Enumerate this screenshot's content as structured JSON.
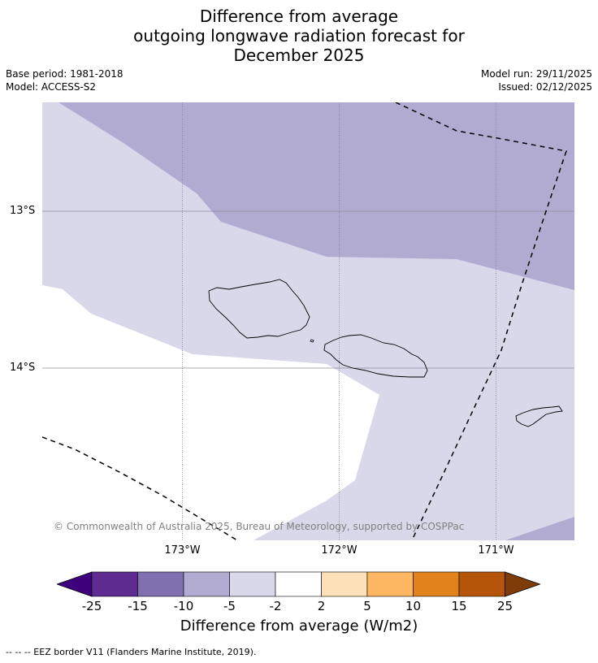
{
  "title": {
    "line1": "Difference from average",
    "line2": "outgoing longwave radiation forecast for",
    "line3": "December 2025"
  },
  "meta": {
    "base_period": "Base period: 1981-2018",
    "model": "Model: ACCESS-S2",
    "model_run": "Model run: 29/11/2025",
    "issued": "Issued: 02/12/2025"
  },
  "map": {
    "lat_labels": [
      "13°S",
      "14°S"
    ],
    "lon_labels": [
      "173°W",
      "172°W",
      "171°W"
    ],
    "copyright": "© Commonwealth of Australia 2025, Bureau of Meteorology, supported by COSPPac",
    "colors": {
      "anom_minus2_to_minus5": "#d8d8ea",
      "anom_minus5_to_minus10": "#b1abd2",
      "neutral": "#ffffff",
      "coastline": "#000000"
    }
  },
  "colorbar": {
    "tick_labels": [
      "-25",
      "-15",
      "-10",
      "-5",
      "-2",
      "2",
      "5",
      "10",
      "15",
      "25"
    ],
    "colors": [
      "#3f007d",
      "#5e2c91",
      "#8170b0",
      "#b1abd2",
      "#d8d8ea",
      "#ffffff",
      "#fee1b8",
      "#fdb762",
      "#e1821a",
      "#b4550a",
      "#7f3b08"
    ],
    "label": "Difference from average (W/m2)"
  },
  "legend": {
    "eez": "-- -- -- EEZ border V11 (Flanders Marine Institute, 2019)."
  }
}
